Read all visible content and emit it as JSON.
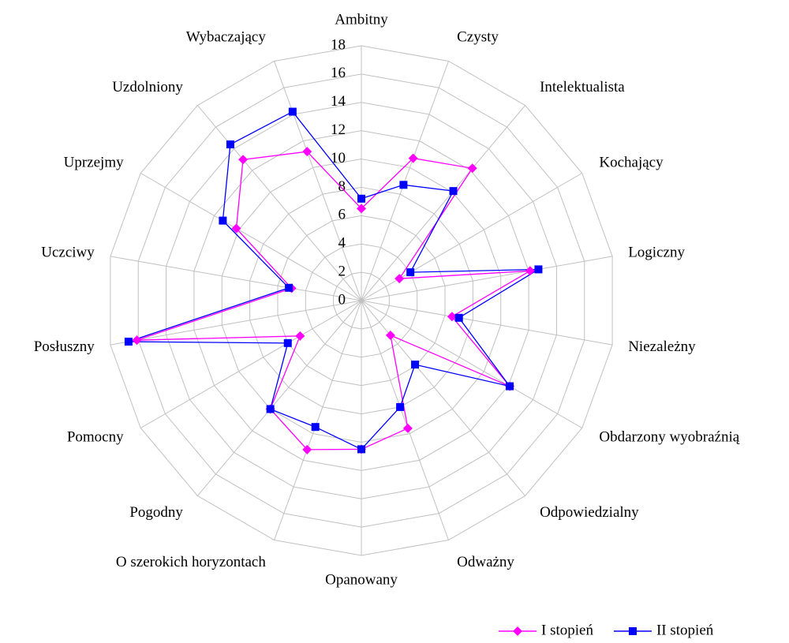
{
  "chart_data": {
    "type": "radar",
    "categories": [
      "Ambitny",
      "Czysty",
      "Intelektualista",
      "Kochający",
      "Logiczny",
      "Niezależny",
      "Obdarzony wyobraźnią",
      "Odpowiedzialny",
      "Odważny",
      "Opanowany",
      "O szerokich horyzontach",
      "Pogodny",
      "Pomocny",
      "Posłuszny",
      "Uczciwy",
      "Uprzejmy",
      "Uzdolniony",
      "Wybaczający"
    ],
    "series": [
      {
        "name": "I stopień",
        "color": "#ff00ff",
        "marker": "diamond",
        "values": [
          6.5,
          10.7,
          12.2,
          3.1,
          12.1,
          6.5,
          12.1,
          3.2,
          9.6,
          10.5,
          11.2,
          10.0,
          5.0,
          16.1,
          5.0,
          10.2,
          13.0,
          11.2
        ]
      },
      {
        "name": "II stopień",
        "color": "#0000ff",
        "marker": "square",
        "values": [
          7.2,
          8.7,
          10.1,
          4.0,
          12.7,
          7.0,
          12.1,
          5.9,
          8.0,
          10.5,
          9.5,
          10.0,
          6.0,
          16.7,
          5.2,
          11.3,
          14.4,
          14.2
        ]
      }
    ],
    "ylim": [
      0,
      18
    ],
    "yticks": [
      0,
      2,
      4,
      6,
      8,
      10,
      12,
      14,
      16,
      18
    ],
    "grid": true,
    "legend": "bottom-right"
  }
}
